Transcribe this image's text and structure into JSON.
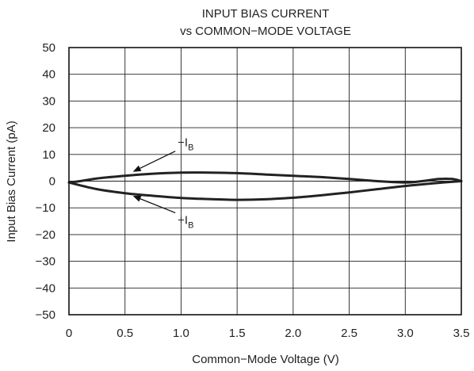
{
  "chart_data": {
    "type": "line",
    "title_lines": [
      "INPUT BIAS CURRENT",
      "vs COMMON−MODE VOLTAGE"
    ],
    "xlabel": "Common−Mode Voltage (V)",
    "ylabel": "Input Bias Current (pA)",
    "xlim": [
      0,
      3.5
    ],
    "ylim": [
      -50,
      50
    ],
    "xticks": [
      0,
      0.5,
      1,
      1.5,
      2,
      2.5,
      3,
      3.5
    ],
    "xtick_labels": [
      "0",
      "0.5",
      "1.0",
      "1.5",
      "2.0",
      "2.5",
      "3.0",
      "3.5"
    ],
    "yticks": [
      50,
      40,
      30,
      20,
      10,
      0,
      -10,
      -20,
      -30,
      -40,
      -50
    ],
    "ytick_labels": [
      "50",
      "40",
      "30",
      "20",
      "10",
      "0",
      "−10",
      "−20",
      "−30",
      "−40",
      "−50"
    ],
    "grid": true,
    "series": [
      {
        "x": [
          0,
          0.1,
          0.25,
          0.5,
          0.75,
          1.0,
          1.25,
          1.5,
          1.75,
          2.0,
          2.25,
          2.5,
          2.75,
          3.0,
          3.15,
          3.3,
          3.42,
          3.5
        ],
        "y": [
          -0.5,
          0,
          1,
          2,
          2.8,
          3.2,
          3.2,
          3,
          2.5,
          2,
          1.5,
          0.8,
          0,
          -0.5,
          0,
          0.8,
          0.8,
          0
        ]
      },
      {
        "x": [
          0,
          0.25,
          0.5,
          0.75,
          1.0,
          1.25,
          1.5,
          1.75,
          2.0,
          2.25,
          2.5,
          2.75,
          3.0,
          3.25,
          3.5
        ],
        "y": [
          -0.5,
          -3,
          -4.5,
          -5.5,
          -6.3,
          -6.7,
          -7,
          -6.8,
          -6.2,
          -5.3,
          -4.2,
          -3,
          -1.8,
          -0.8,
          0
        ]
      }
    ],
    "annotations": [
      {
        "prefix": "−I",
        "sub": "B",
        "x": 0.97,
        "y": 13,
        "arrow_to": [
          0.57,
          3.5
        ]
      },
      {
        "prefix": "+I",
        "sub": "B",
        "x": 0.97,
        "y": -16,
        "arrow_to": [
          0.57,
          -5.5
        ]
      }
    ]
  }
}
